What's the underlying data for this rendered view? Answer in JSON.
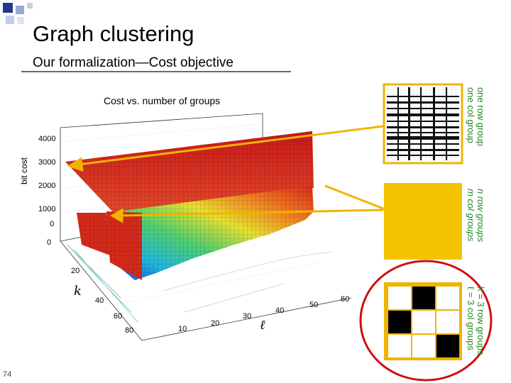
{
  "slide": {
    "title": "Graph clustering",
    "subtitle": "Our formalization—Cost objective",
    "page_number": "74"
  },
  "plot": {
    "title": "Cost vs. number of groups",
    "zlabel": "bit cost",
    "xlabel_symbol": "k",
    "ylabel_symbol": "ℓ",
    "z_ticks": [
      "4000",
      "3000",
      "2000",
      "1000",
      "0"
    ],
    "k_ticks": [
      "0",
      "20",
      "40",
      "60",
      "80"
    ],
    "l_ticks": [
      "10",
      "20",
      "30",
      "40",
      "50",
      "60"
    ]
  },
  "panels": [
    {
      "line1": "one row group",
      "line2": "one col group",
      "color": "#228822"
    },
    {
      "line1": "n row groups",
      "line2": "m col groups",
      "color": "#228822"
    },
    {
      "line1": "k = 3 row groups",
      "line2": "ℓ = 3 col groups",
      "color": "#228822"
    }
  ],
  "colors": {
    "arrow": "#f0b400",
    "ellipse": "#cc1111",
    "matrix_fill": "#f5c400",
    "rule": "#5a6a8a"
  }
}
